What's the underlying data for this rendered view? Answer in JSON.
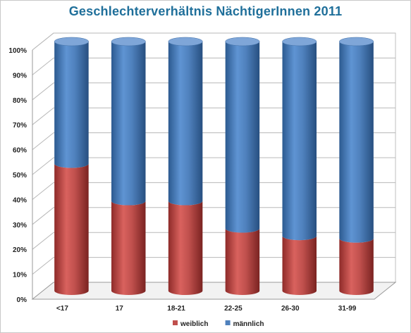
{
  "chart_data": {
    "type": "bar",
    "stacked": true,
    "percent_stacked": true,
    "title": "Geschlechterverhältnis NächtigerInnen 2011",
    "categories": [
      "<17",
      "17",
      "18-21",
      "22-25",
      "26-30",
      "31-99"
    ],
    "series": [
      {
        "name": "weiblich",
        "color": "#c0504d",
        "values": [
          51,
          36,
          36,
          25,
          22,
          21
        ]
      },
      {
        "name": "männlich",
        "color": "#4f81bd",
        "values": [
          49,
          64,
          64,
          75,
          78,
          79
        ]
      }
    ],
    "y_ticks": [
      "0%",
      "10%",
      "20%",
      "30%",
      "40%",
      "50%",
      "60%",
      "70%",
      "80%",
      "90%",
      "100%"
    ],
    "ylim": [
      0,
      100
    ],
    "grid": true,
    "legend_position": "bottom"
  }
}
